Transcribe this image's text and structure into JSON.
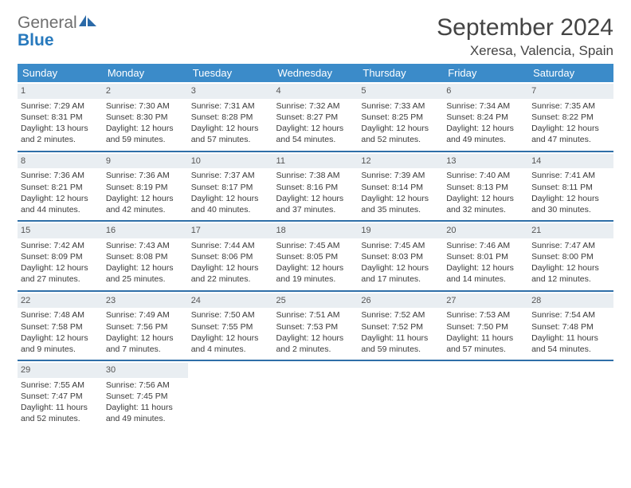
{
  "logo": {
    "word1": "General",
    "word2": "Blue"
  },
  "title": "September 2024",
  "location": "Xeresa, Valencia, Spain",
  "colors": {
    "header_bg": "#3b8bc9",
    "header_text": "#ffffff",
    "row_divider": "#2f6fa8",
    "daynum_bg": "#e9eef2",
    "body_text": "#3a3a3a",
    "logo_gray": "#6e6e6e",
    "logo_blue": "#2779bd"
  },
  "day_headers": [
    "Sunday",
    "Monday",
    "Tuesday",
    "Wednesday",
    "Thursday",
    "Friday",
    "Saturday"
  ],
  "weeks": [
    [
      {
        "n": "1",
        "sr": "Sunrise: 7:29 AM",
        "ss": "Sunset: 8:31 PM",
        "dl": "Daylight: 13 hours and 2 minutes."
      },
      {
        "n": "2",
        "sr": "Sunrise: 7:30 AM",
        "ss": "Sunset: 8:30 PM",
        "dl": "Daylight: 12 hours and 59 minutes."
      },
      {
        "n": "3",
        "sr": "Sunrise: 7:31 AM",
        "ss": "Sunset: 8:28 PM",
        "dl": "Daylight: 12 hours and 57 minutes."
      },
      {
        "n": "4",
        "sr": "Sunrise: 7:32 AM",
        "ss": "Sunset: 8:27 PM",
        "dl": "Daylight: 12 hours and 54 minutes."
      },
      {
        "n": "5",
        "sr": "Sunrise: 7:33 AM",
        "ss": "Sunset: 8:25 PM",
        "dl": "Daylight: 12 hours and 52 minutes."
      },
      {
        "n": "6",
        "sr": "Sunrise: 7:34 AM",
        "ss": "Sunset: 8:24 PM",
        "dl": "Daylight: 12 hours and 49 minutes."
      },
      {
        "n": "7",
        "sr": "Sunrise: 7:35 AM",
        "ss": "Sunset: 8:22 PM",
        "dl": "Daylight: 12 hours and 47 minutes."
      }
    ],
    [
      {
        "n": "8",
        "sr": "Sunrise: 7:36 AM",
        "ss": "Sunset: 8:21 PM",
        "dl": "Daylight: 12 hours and 44 minutes."
      },
      {
        "n": "9",
        "sr": "Sunrise: 7:36 AM",
        "ss": "Sunset: 8:19 PM",
        "dl": "Daylight: 12 hours and 42 minutes."
      },
      {
        "n": "10",
        "sr": "Sunrise: 7:37 AM",
        "ss": "Sunset: 8:17 PM",
        "dl": "Daylight: 12 hours and 40 minutes."
      },
      {
        "n": "11",
        "sr": "Sunrise: 7:38 AM",
        "ss": "Sunset: 8:16 PM",
        "dl": "Daylight: 12 hours and 37 minutes."
      },
      {
        "n": "12",
        "sr": "Sunrise: 7:39 AM",
        "ss": "Sunset: 8:14 PM",
        "dl": "Daylight: 12 hours and 35 minutes."
      },
      {
        "n": "13",
        "sr": "Sunrise: 7:40 AM",
        "ss": "Sunset: 8:13 PM",
        "dl": "Daylight: 12 hours and 32 minutes."
      },
      {
        "n": "14",
        "sr": "Sunrise: 7:41 AM",
        "ss": "Sunset: 8:11 PM",
        "dl": "Daylight: 12 hours and 30 minutes."
      }
    ],
    [
      {
        "n": "15",
        "sr": "Sunrise: 7:42 AM",
        "ss": "Sunset: 8:09 PM",
        "dl": "Daylight: 12 hours and 27 minutes."
      },
      {
        "n": "16",
        "sr": "Sunrise: 7:43 AM",
        "ss": "Sunset: 8:08 PM",
        "dl": "Daylight: 12 hours and 25 minutes."
      },
      {
        "n": "17",
        "sr": "Sunrise: 7:44 AM",
        "ss": "Sunset: 8:06 PM",
        "dl": "Daylight: 12 hours and 22 minutes."
      },
      {
        "n": "18",
        "sr": "Sunrise: 7:45 AM",
        "ss": "Sunset: 8:05 PM",
        "dl": "Daylight: 12 hours and 19 minutes."
      },
      {
        "n": "19",
        "sr": "Sunrise: 7:45 AM",
        "ss": "Sunset: 8:03 PM",
        "dl": "Daylight: 12 hours and 17 minutes."
      },
      {
        "n": "20",
        "sr": "Sunrise: 7:46 AM",
        "ss": "Sunset: 8:01 PM",
        "dl": "Daylight: 12 hours and 14 minutes."
      },
      {
        "n": "21",
        "sr": "Sunrise: 7:47 AM",
        "ss": "Sunset: 8:00 PM",
        "dl": "Daylight: 12 hours and 12 minutes."
      }
    ],
    [
      {
        "n": "22",
        "sr": "Sunrise: 7:48 AM",
        "ss": "Sunset: 7:58 PM",
        "dl": "Daylight: 12 hours and 9 minutes."
      },
      {
        "n": "23",
        "sr": "Sunrise: 7:49 AM",
        "ss": "Sunset: 7:56 PM",
        "dl": "Daylight: 12 hours and 7 minutes."
      },
      {
        "n": "24",
        "sr": "Sunrise: 7:50 AM",
        "ss": "Sunset: 7:55 PM",
        "dl": "Daylight: 12 hours and 4 minutes."
      },
      {
        "n": "25",
        "sr": "Sunrise: 7:51 AM",
        "ss": "Sunset: 7:53 PM",
        "dl": "Daylight: 12 hours and 2 minutes."
      },
      {
        "n": "26",
        "sr": "Sunrise: 7:52 AM",
        "ss": "Sunset: 7:52 PM",
        "dl": "Daylight: 11 hours and 59 minutes."
      },
      {
        "n": "27",
        "sr": "Sunrise: 7:53 AM",
        "ss": "Sunset: 7:50 PM",
        "dl": "Daylight: 11 hours and 57 minutes."
      },
      {
        "n": "28",
        "sr": "Sunrise: 7:54 AM",
        "ss": "Sunset: 7:48 PM",
        "dl": "Daylight: 11 hours and 54 minutes."
      }
    ],
    [
      {
        "n": "29",
        "sr": "Sunrise: 7:55 AM",
        "ss": "Sunset: 7:47 PM",
        "dl": "Daylight: 11 hours and 52 minutes."
      },
      {
        "n": "30",
        "sr": "Sunrise: 7:56 AM",
        "ss": "Sunset: 7:45 PM",
        "dl": "Daylight: 11 hours and 49 minutes."
      },
      {
        "empty": true
      },
      {
        "empty": true
      },
      {
        "empty": true
      },
      {
        "empty": true
      },
      {
        "empty": true
      }
    ]
  ]
}
